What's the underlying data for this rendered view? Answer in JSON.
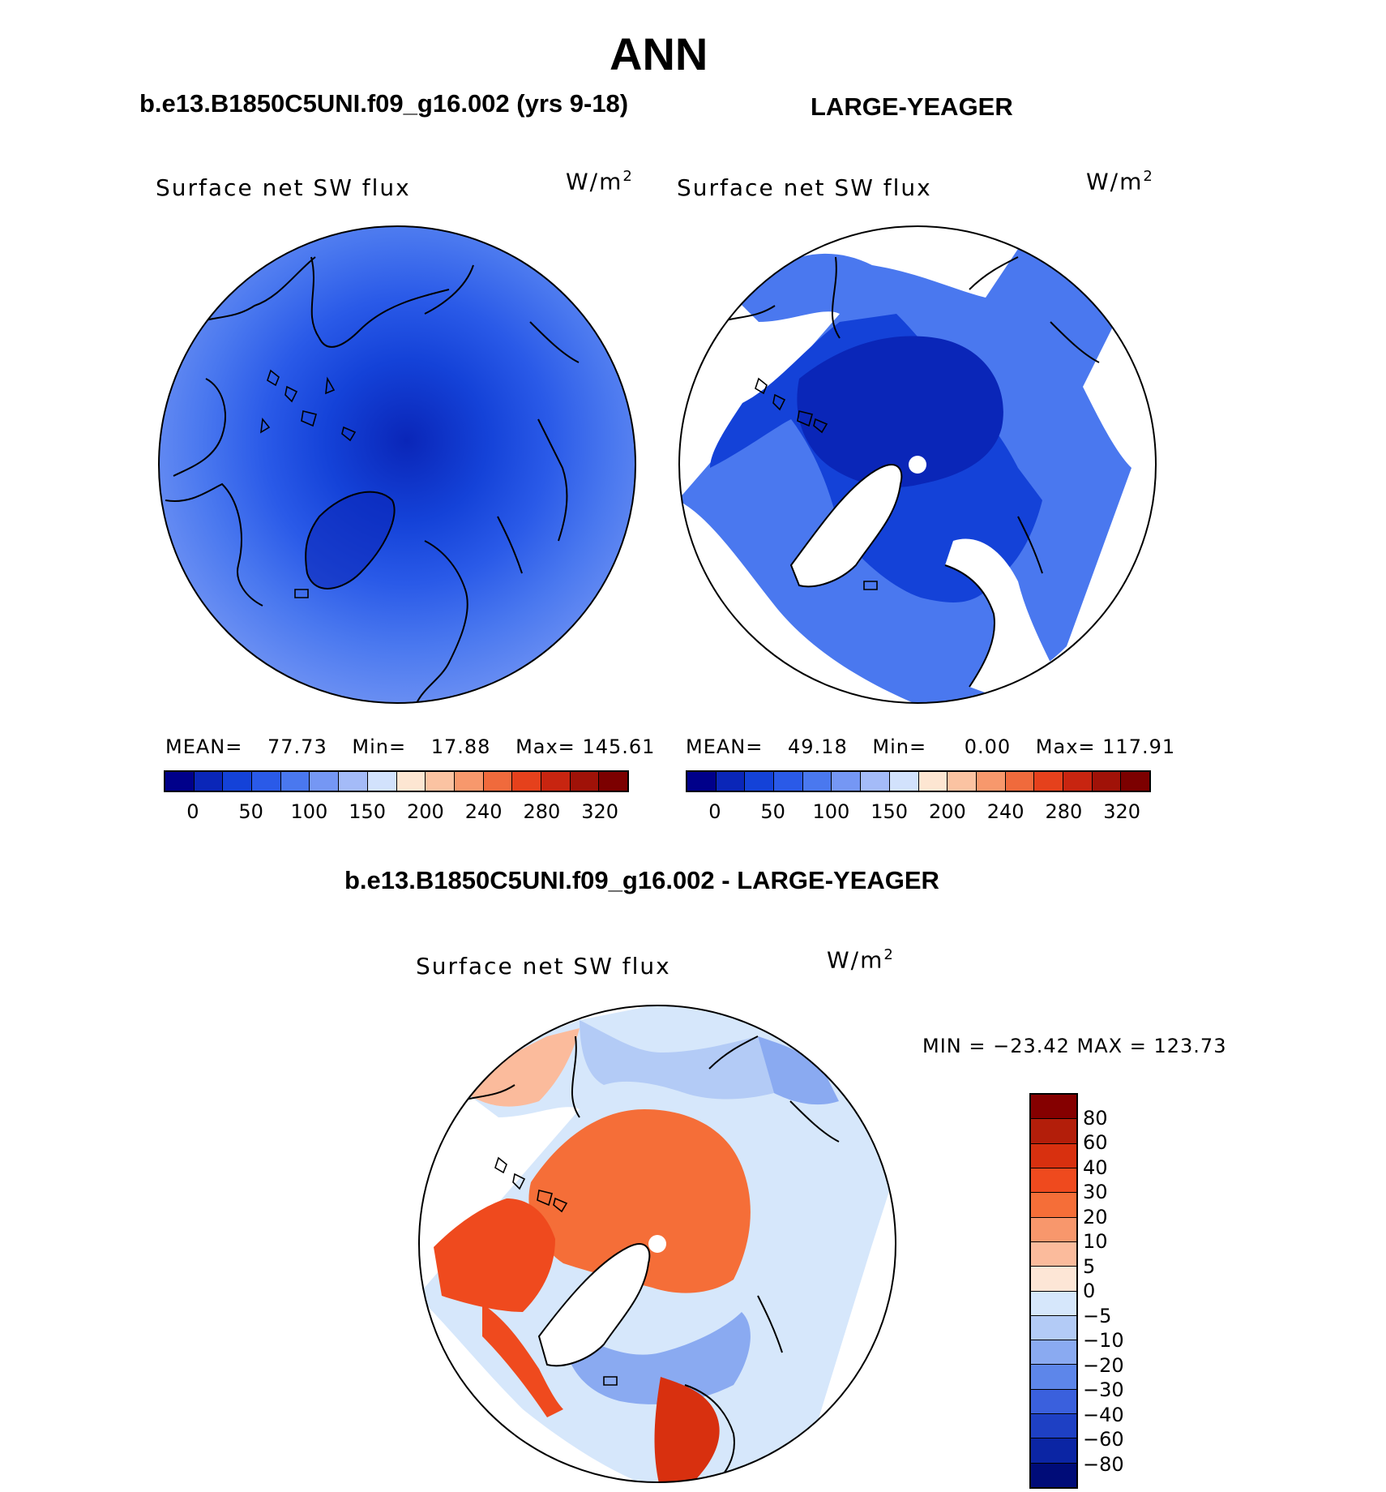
{
  "figure": {
    "main_title": "ANN",
    "panel1_title": "b.e13.B1850C5UNI.f09_g16.002 (yrs 9-18)",
    "panel2_title": "LARGE-YEAGER",
    "panel3_title": "b.e13.B1850C5UNI.f09_g16.002 - LARGE-YEAGER"
  },
  "chart_data": [
    {
      "type": "heatmap",
      "projection": "north polar stereographic",
      "title": "b.e13.B1850C5UNI.f09_g16.002 (yrs 9-18)",
      "variable": "Surface net SW flux",
      "units": "W/m",
      "units_exp": "2",
      "stats": {
        "mean_label": "MEAN=",
        "mean": "77.73",
        "min_label": "Min=",
        "min": "17.88",
        "max_label": "Max=",
        "max": "145.61"
      },
      "colorbar_ticks": [
        "0",
        "50",
        "100",
        "150",
        "200",
        "240",
        "280",
        "320"
      ],
      "colorbar_colors": [
        "#00008a",
        "#0a26b8",
        "#1442d8",
        "#2a5ae8",
        "#4a78ef",
        "#7597f4",
        "#a4bbf8",
        "#d2e2fc",
        "#fde6d2",
        "#fbc3a2",
        "#f7986c",
        "#f06a3c",
        "#e5411c",
        "#c82510",
        "#a01208",
        "#7c0000"
      ]
    },
    {
      "type": "heatmap",
      "projection": "north polar stereographic",
      "title": "LARGE-YEAGER",
      "variable": "Surface net SW flux",
      "units": "W/m",
      "units_exp": "2",
      "stats": {
        "mean_label": "MEAN=",
        "mean": "49.18",
        "min_label": "Min=",
        "min": "0.00",
        "max_label": "Max=",
        "max": "117.91"
      },
      "colorbar_ticks": [
        "0",
        "50",
        "100",
        "150",
        "200",
        "240",
        "280",
        "320"
      ],
      "colorbar_colors": [
        "#00008a",
        "#0a26b8",
        "#1442d8",
        "#2a5ae8",
        "#4a78ef",
        "#7597f4",
        "#a4bbf8",
        "#d2e2fc",
        "#fde6d2",
        "#fbc3a2",
        "#f7986c",
        "#f06a3c",
        "#e5411c",
        "#c82510",
        "#a01208",
        "#7c0000"
      ]
    },
    {
      "type": "heatmap",
      "projection": "north polar stereographic",
      "title": "b.e13.B1850C5UNI.f09_g16.002 - LARGE-YEAGER",
      "variable": "Surface net SW flux",
      "units": "W/m",
      "units_exp": "2",
      "stats": {
        "text": "MIN = −23.42 MAX = 123.73"
      },
      "colorbar_ticks": [
        "80",
        "60",
        "40",
        "30",
        "20",
        "10",
        "5",
        "0",
        "−5",
        "−10",
        "−20",
        "−30",
        "−40",
        "−60",
        "−80"
      ],
      "colorbar_colors": [
        "#850000",
        "#b31e0a",
        "#d8300f",
        "#ef4a1e",
        "#f56e38",
        "#f8976c",
        "#fbbb9c",
        "#fde6d6",
        "#d6e7fb",
        "#b3cbf6",
        "#8aaaf1",
        "#5d86ea",
        "#3a60dd",
        "#1e40c4",
        "#0b25a4",
        "#000c78"
      ]
    }
  ]
}
